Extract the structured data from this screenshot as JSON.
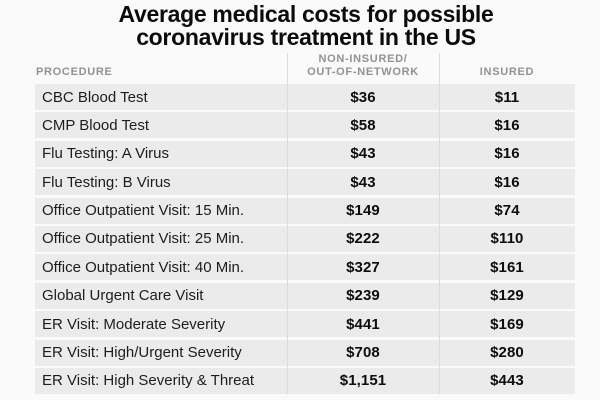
{
  "title": {
    "line1": "Average medical costs for possible",
    "line2": "coronavirus treatment in the US"
  },
  "table": {
    "columns": {
      "procedure_label": "PROCEDURE",
      "non_insured_label_line1": "NON-INSURED/",
      "non_insured_label_line2": "OUT-OF-NETWORK",
      "insured_label": "INSURED"
    },
    "rows": [
      {
        "procedure": "CBC Blood Test",
        "non_insured": "$36",
        "insured": "$11"
      },
      {
        "procedure": "CMP Blood Test",
        "non_insured": "$58",
        "insured": "$16"
      },
      {
        "procedure": "Flu Testing: A Virus",
        "non_insured": "$43",
        "insured": "$16"
      },
      {
        "procedure": "Flu Testing: B Virus",
        "non_insured": "$43",
        "insured": "$16"
      },
      {
        "procedure": "Office Outpatient Visit: 15 Min.",
        "non_insured": "$149",
        "insured": "$74"
      },
      {
        "procedure": "Office Outpatient Visit: 25 Min.",
        "non_insured": "$222",
        "insured": "$110"
      },
      {
        "procedure": "Office Outpatient Visit: 40 Min.",
        "non_insured": "$327",
        "insured": "$161"
      },
      {
        "procedure": "Global Urgent Care Visit",
        "non_insured": "$239",
        "insured": "$129"
      },
      {
        "procedure": "ER Visit: Moderate Severity",
        "non_insured": "$441",
        "insured": "$169"
      },
      {
        "procedure": "ER Visit: High/Urgent Severity",
        "non_insured": "$708",
        "insured": "$280"
      },
      {
        "procedure": "ER Visit: High Severity & Threat",
        "non_insured": "$1,151",
        "insured": "$443"
      }
    ]
  },
  "colors": {
    "page_background": "#fafafa",
    "row_background": "#ebebec",
    "divider": "#dcdcdd",
    "header_text": "#929292",
    "title_text": "#0b0b0b",
    "value_text": "#0d0d0d"
  },
  "chart_data": {
    "type": "table",
    "title": "Average medical costs for possible coronavirus treatment in the US",
    "columns": [
      "PROCEDURE",
      "NON-INSURED/OUT-OF-NETWORK",
      "INSURED"
    ],
    "currency": "USD",
    "rows": [
      [
        "CBC Blood Test",
        36,
        11
      ],
      [
        "CMP Blood Test",
        58,
        16
      ],
      [
        "Flu Testing: A Virus",
        43,
        16
      ],
      [
        "Flu Testing: B Virus",
        43,
        16
      ],
      [
        "Office Outpatient Visit: 15 Min.",
        149,
        74
      ],
      [
        "Office Outpatient Visit: 25 Min.",
        222,
        110
      ],
      [
        "Office Outpatient Visit: 40 Min.",
        327,
        161
      ],
      [
        "Global Urgent Care Visit",
        239,
        129
      ],
      [
        "ER Visit: Moderate Severity",
        441,
        169
      ],
      [
        "ER Visit: High/Urgent Severity",
        708,
        280
      ],
      [
        "ER Visit: High Severity & Threat",
        1151,
        443
      ]
    ]
  }
}
